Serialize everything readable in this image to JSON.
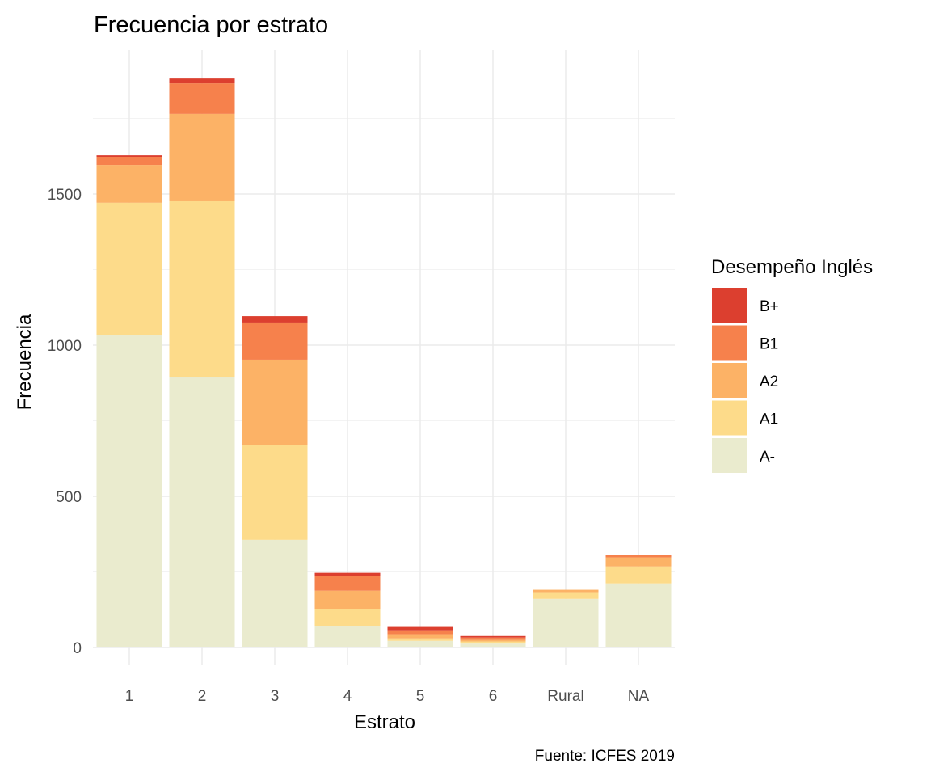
{
  "chart_data": {
    "type": "bar",
    "stacked": true,
    "title": "Frecuencia por estrato",
    "xlabel": "Estrato",
    "ylabel": "Frecuencia",
    "caption": "Fuente: ICFES 2019",
    "categories": [
      "1",
      "2",
      "3",
      "4",
      "5",
      "6",
      "Rural",
      "NA"
    ],
    "ylim": [
      0,
      1980
    ],
    "yticks": [
      0,
      500,
      1000,
      1500
    ],
    "grid": true,
    "legend": {
      "title": "Desempeño Inglés",
      "placement": "right",
      "order": [
        "B+",
        "B1",
        "A2",
        "A1",
        "A-"
      ]
    },
    "series": [
      {
        "name": "A-",
        "color": "#EAEBCE",
        "values": [
          1032,
          893,
          356,
          70,
          22,
          13,
          161,
          212
        ]
      },
      {
        "name": "A1",
        "color": "#FDDB8A",
        "values": [
          439,
          583,
          315,
          57,
          8,
          7,
          22,
          56
        ]
      },
      {
        "name": "A2",
        "color": "#FCB266",
        "values": [
          125,
          289,
          281,
          61,
          14,
          5,
          8,
          30
        ]
      },
      {
        "name": "B1",
        "color": "#F6814C",
        "values": [
          27,
          101,
          123,
          48,
          13,
          8,
          0,
          8
        ]
      },
      {
        "name": "B+",
        "color": "#DC3F2F",
        "values": [
          5,
          16,
          21,
          11,
          11,
          5,
          0,
          0
        ]
      }
    ]
  }
}
